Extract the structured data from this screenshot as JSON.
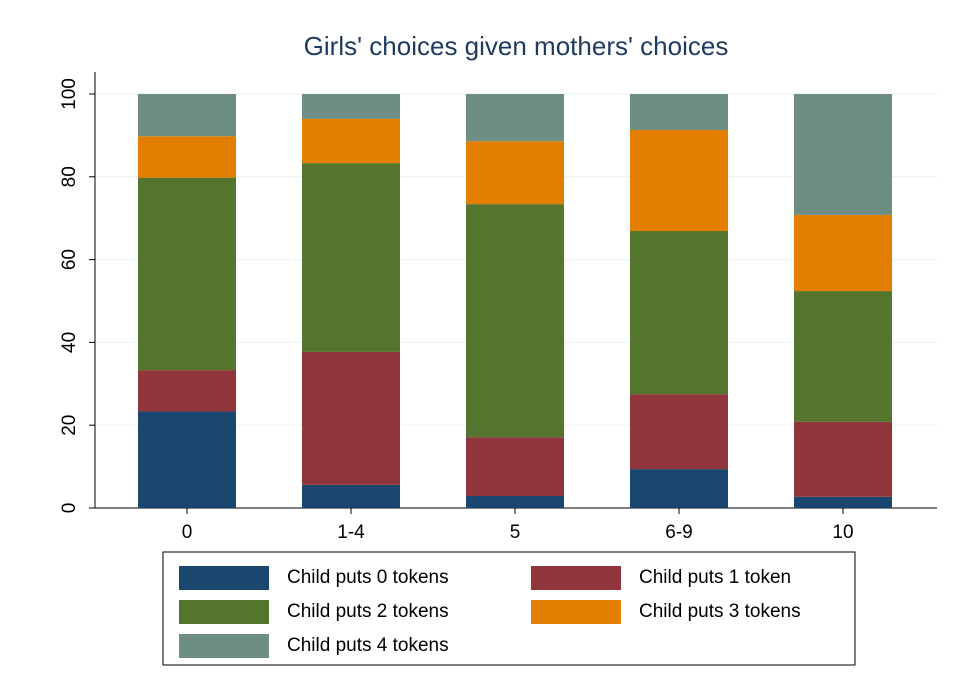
{
  "chart_data": {
    "type": "stacked_bar",
    "title": "Girls' choices given mothers' choices",
    "categories": [
      "0",
      "1-4",
      "5",
      "6-9",
      "10"
    ],
    "series": [
      {
        "name": "Child puts 0 tokens",
        "color": "#1a476f",
        "values": [
          23.3,
          5.6,
          2.9,
          9.4,
          2.7
        ]
      },
      {
        "name": "Child puts 1 token",
        "color": "#90353b",
        "values": [
          10.0,
          32.1,
          14.2,
          18.1,
          18.1
        ]
      },
      {
        "name": "Child puts 2 tokens",
        "color": "#55752f",
        "values": [
          46.5,
          45.6,
          56.3,
          39.4,
          31.6
        ]
      },
      {
        "name": "Child puts 3 tokens",
        "color": "#e37e00",
        "values": [
          10.0,
          10.7,
          15.2,
          24.4,
          18.4
        ]
      },
      {
        "name": "Child puts 4 tokens",
        "color": "#6e8e84",
        "values": [
          10.2,
          6.0,
          11.4,
          8.7,
          29.2
        ]
      }
    ],
    "ylim": [
      0,
      100
    ],
    "yticks": [
      0,
      20,
      40,
      60,
      80,
      100
    ],
    "grid": true
  }
}
